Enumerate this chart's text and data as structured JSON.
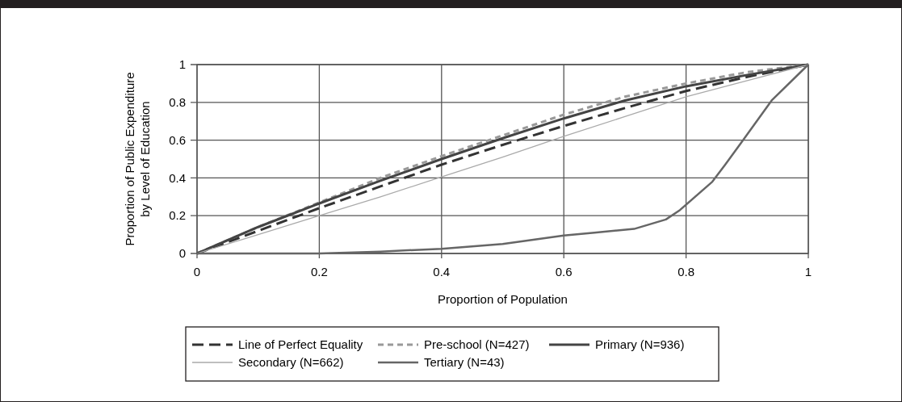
{
  "chart_data": {
    "type": "line",
    "xlabel": "Proportion of Population",
    "ylabel": "Proportion of Public Expenditure\nby Level of Education",
    "xlim": [
      0,
      1
    ],
    "ylim": [
      0,
      1
    ],
    "xticks": [
      0,
      0.2,
      0.4,
      0.6,
      0.8,
      1
    ],
    "yticks": [
      0,
      0.2,
      0.4,
      0.6,
      0.8,
      1
    ],
    "grid": true,
    "legend": "bottom",
    "marker": "none",
    "series": [
      {
        "name": "Line of Perfect Equality",
        "color": "#333333",
        "line_style": "dashed",
        "x": [
          0,
          0.1,
          0.2,
          0.3,
          0.4,
          0.5,
          0.6,
          0.7,
          0.8,
          0.9,
          1
        ],
        "values": [
          0,
          0.12,
          0.24,
          0.355,
          0.47,
          0.575,
          0.675,
          0.77,
          0.86,
          0.935,
          1
        ]
      },
      {
        "name": "Pre-school (N=427)",
        "color": "#999999",
        "line_style": "dotted",
        "x": [
          0,
          0.1,
          0.2,
          0.3,
          0.4,
          0.5,
          0.6,
          0.7,
          0.8,
          0.9,
          1
        ],
        "values": [
          0,
          0.14,
          0.27,
          0.4,
          0.515,
          0.625,
          0.735,
          0.83,
          0.9,
          0.96,
          1
        ]
      },
      {
        "name": "Primary (N=936)",
        "color": "#444444",
        "line_style": "solid",
        "x": [
          0,
          0.1,
          0.2,
          0.3,
          0.4,
          0.5,
          0.6,
          0.7,
          0.8,
          0.9,
          1
        ],
        "values": [
          0,
          0.14,
          0.265,
          0.385,
          0.5,
          0.61,
          0.715,
          0.81,
          0.885,
          0.945,
          1
        ]
      },
      {
        "name": "Secondary (N=662)",
        "color": "#aaaaaa",
        "line_style": "solid",
        "x": [
          0,
          0.1,
          0.2,
          0.3,
          0.4,
          0.5,
          0.6,
          0.7,
          0.8,
          0.9,
          1
        ],
        "values": [
          0,
          0.1,
          0.2,
          0.3,
          0.405,
          0.51,
          0.62,
          0.725,
          0.83,
          0.915,
          1
        ]
      },
      {
        "name": "Tertiary (N=43)",
        "color": "#666666",
        "line_style": "solid",
        "x": [
          0,
          0.2,
          0.3,
          0.4,
          0.5,
          0.6,
          0.65,
          0.715,
          0.767,
          0.79,
          0.843,
          0.864,
          0.89,
          0.94,
          1
        ],
        "values": [
          0,
          0,
          0.01,
          0.025,
          0.05,
          0.095,
          0.11,
          0.13,
          0.18,
          0.23,
          0.38,
          0.47,
          0.585,
          0.81,
          1
        ]
      }
    ]
  }
}
